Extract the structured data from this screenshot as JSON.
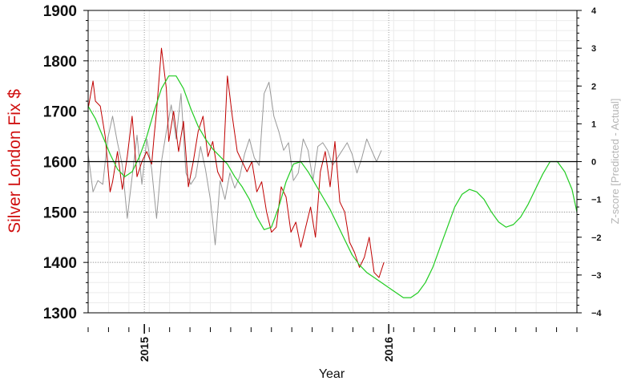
{
  "chart_data": {
    "type": "line",
    "title": "",
    "xlabel": "Year",
    "ylabel": "Silver London Fix $",
    "y2label": "Z-score [Predicted - Actual]",
    "x_tick_labels": [
      "2015",
      "2016"
    ],
    "x_tick_values": [
      2015.0,
      2016.0
    ],
    "xlim": [
      2014.77,
      2016.77
    ],
    "ylim": [
      1300,
      1900
    ],
    "y_ticks": [
      1300,
      1400,
      1500,
      1600,
      1700,
      1800,
      1900
    ],
    "y2lim": [
      -4,
      4
    ],
    "y2_ticks": [
      -4,
      -3,
      -2,
      -1,
      0,
      1,
      2,
      3,
      4
    ],
    "reference_line_y2": 0,
    "grid": true,
    "colors": {
      "actual": "#c00000",
      "prediction": "#22cc22",
      "zscore": "#999999",
      "zero_line": "#000000",
      "ylabel": "#d01010",
      "y2label": "#b5b5b5"
    },
    "series": [
      {
        "role": "actual",
        "axis": "left",
        "x": [
          2014.77,
          2014.79,
          2014.8,
          2014.82,
          2014.84,
          2014.86,
          2014.87,
          2014.89,
          2014.91,
          2014.93,
          2014.95,
          2014.97,
          2014.99,
          2015.01,
          2015.03,
          2015.04,
          2015.05,
          2015.07,
          2015.09,
          2015.1,
          2015.12,
          2015.14,
          2015.16,
          2015.18,
          2015.2,
          2015.22,
          2015.24,
          2015.26,
          2015.28,
          2015.3,
          2015.32,
          2015.34,
          2015.36,
          2015.38,
          2015.4,
          2015.42,
          2015.44,
          2015.46,
          2015.48,
          2015.5,
          2015.52,
          2015.54,
          2015.56,
          2015.58,
          2015.6,
          2015.62,
          2015.64,
          2015.66,
          2015.68,
          2015.7,
          2015.72,
          2015.74,
          2015.76,
          2015.78,
          2015.8,
          2015.82,
          2015.84,
          2015.86,
          2015.88,
          2015.9,
          2015.92,
          2015.94,
          2015.96,
          2015.98
        ],
        "y": [
          1705,
          1760,
          1720,
          1710,
          1650,
          1540,
          1560,
          1620,
          1545,
          1610,
          1690,
          1570,
          1600,
          1620,
          1595,
          1650,
          1700,
          1825,
          1745,
          1640,
          1700,
          1620,
          1680,
          1550,
          1600,
          1660,
          1690,
          1610,
          1640,
          1580,
          1560,
          1770,
          1690,
          1620,
          1600,
          1580,
          1600,
          1540,
          1560,
          1500,
          1460,
          1470,
          1550,
          1530,
          1460,
          1480,
          1430,
          1470,
          1510,
          1450,
          1580,
          1620,
          1550,
          1640,
          1520,
          1500,
          1440,
          1420,
          1390,
          1410,
          1450,
          1380,
          1370,
          1400
        ]
      },
      {
        "role": "prediction",
        "axis": "left",
        "x": [
          2014.77,
          2014.8,
          2014.83,
          2014.86,
          2014.89,
          2014.92,
          2014.95,
          2014.98,
          2015.01,
          2015.04,
          2015.07,
          2015.1,
          2015.13,
          2015.16,
          2015.19,
          2015.22,
          2015.25,
          2015.28,
          2015.31,
          2015.34,
          2015.37,
          2015.4,
          2015.43,
          2015.46,
          2015.49,
          2015.52,
          2015.55,
          2015.58,
          2015.61,
          2015.64,
          2015.67,
          2015.7,
          2015.73,
          2015.76,
          2015.79,
          2015.82,
          2015.85,
          2015.88,
          2015.91,
          2015.94,
          2015.97,
          2016.0,
          2016.03,
          2016.06,
          2016.09,
          2016.12,
          2016.15,
          2016.18,
          2016.21,
          2016.24,
          2016.27,
          2016.3,
          2016.33,
          2016.36,
          2016.39,
          2016.42,
          2016.45,
          2016.48,
          2016.51,
          2016.54,
          2016.57,
          2016.6,
          2016.63,
          2016.66,
          2016.69,
          2016.72,
          2016.75,
          2016.77
        ],
        "y": [
          1710,
          1685,
          1650,
          1615,
          1585,
          1570,
          1580,
          1610,
          1650,
          1700,
          1745,
          1770,
          1770,
          1745,
          1705,
          1670,
          1645,
          1625,
          1610,
          1595,
          1570,
          1550,
          1525,
          1490,
          1465,
          1470,
          1510,
          1560,
          1595,
          1600,
          1580,
          1555,
          1530,
          1505,
          1475,
          1445,
          1415,
          1395,
          1380,
          1370,
          1360,
          1350,
          1340,
          1330,
          1330,
          1340,
          1360,
          1390,
          1430,
          1470,
          1510,
          1535,
          1545,
          1540,
          1525,
          1500,
          1480,
          1470,
          1475,
          1490,
          1515,
          1545,
          1575,
          1600,
          1600,
          1580,
          1545,
          1500
        ]
      },
      {
        "role": "zscore",
        "axis": "right",
        "x": [
          2014.77,
          2014.79,
          2014.81,
          2014.83,
          2014.85,
          2014.87,
          2014.89,
          2014.91,
          2014.93,
          2014.95,
          2014.97,
          2014.99,
          2015.01,
          2015.03,
          2015.05,
          2015.07,
          2015.09,
          2015.11,
          2015.13,
          2015.15,
          2015.17,
          2015.19,
          2015.21,
          2015.23,
          2015.25,
          2015.27,
          2015.29,
          2015.31,
          2015.33,
          2015.35,
          2015.37,
          2015.39,
          2015.41,
          2015.43,
          2015.45,
          2015.47,
          2015.49,
          2015.51,
          2015.53,
          2015.55,
          2015.57,
          2015.59,
          2015.61,
          2015.63,
          2015.65,
          2015.67,
          2015.69,
          2015.71,
          2015.73,
          2015.75,
          2015.77,
          2015.79,
          2015.81,
          2015.83,
          2015.85,
          2015.87,
          2015.89,
          2015.91,
          2015.93,
          2015.95,
          2015.97
        ],
        "y": [
          0.2,
          -0.8,
          -0.5,
          -0.6,
          0.6,
          1.2,
          0.5,
          -0.1,
          -1.5,
          -0.4,
          0.7,
          -0.6,
          0.6,
          -0.2,
          -1.5,
          0.0,
          0.8,
          1.5,
          0.6,
          1.8,
          -0.3,
          -0.6,
          -0.4,
          0.4,
          -0.2,
          -1.0,
          -2.2,
          -0.5,
          -1.0,
          -0.3,
          -0.7,
          -0.4,
          0.2,
          0.6,
          0.1,
          -0.1,
          1.8,
          2.1,
          1.2,
          0.8,
          0.3,
          0.5,
          -0.5,
          -0.3,
          0.6,
          0.3,
          -0.5,
          0.4,
          0.5,
          0.3,
          -0.1,
          0.1,
          0.3,
          0.5,
          0.2,
          -0.3,
          0.1,
          0.6,
          0.3,
          0.0,
          0.3
        ]
      }
    ]
  }
}
